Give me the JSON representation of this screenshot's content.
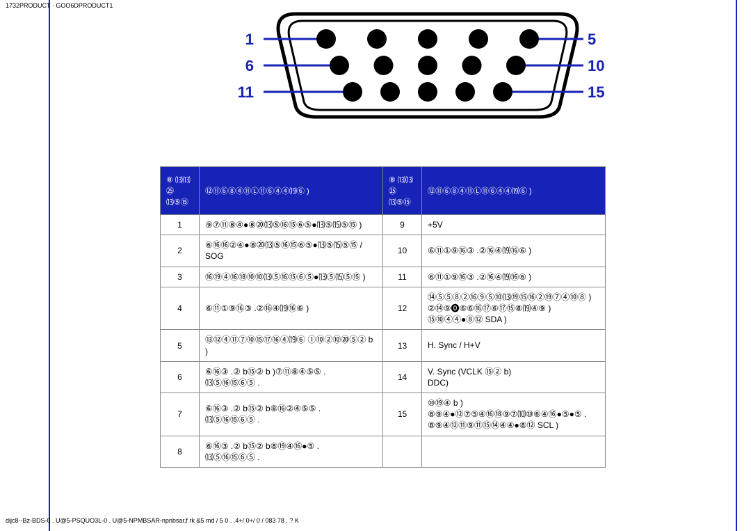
{
  "topbar": "1732PRODUCT · GOO6DPRODUCT1",
  "bottombar": "dijc8--Bz-BDS-0  . U@5-PSQUO3L-0  . U@5-NPMBSAR-npnbsar,f rk  &5 md / 5 0 . .4+/ 0+/ 0 / 083 78 . ? K",
  "connector": {
    "left_labels": [
      "1",
      "6",
      "11"
    ],
    "right_labels": [
      "5",
      "10",
      "15"
    ],
    "rows": [
      5,
      5,
      5
    ],
    "label_color": "#1722b6",
    "shell_stroke": "#000000",
    "pin_fill": "#000000"
  },
  "table": {
    "header_bg": "#1722b6",
    "header_fg": "#ffffff",
    "headers": {
      "pin_left": "⑧ ⒀⒀㉕⒀⑤⑮",
      "sig_left": "⑫⑪⑥⑧④⑪Ⓛ⑪⑥④④⒆⑥ )",
      "pin_right": "⑧ ⒀⒀㉕⒀⑤⑮",
      "sig_right": "⑫⑪⑥⑧④⑪Ⓛ⑪⑥④④⒆⑥ )"
    },
    "rows": [
      {
        "ln": "1",
        "ld": "⑨⑦⑪⑧④●⑧⑳⒀⑤⑯⑮⑥⑤●⒀⑤⒂⑤⑮ )",
        "rn": "9",
        "rd": "+5V"
      },
      {
        "ln": "2",
        "ld": "⑥⑯⑯②④●⑧⑳⒀⑤⑯⑮⑥⑤●⒀⑤⒂⑤⑮ /\nSOG",
        "rn": "10",
        "rd": "⑥⑪①⑨⑯③ .②⑯④⒆⑯⑥ )"
      },
      {
        "ln": "3",
        "ld": "⑯⑲④⑯⑱⑩⑩⒀⑤⑯⑮⑥⑤●⒀⑤⒂⑤⑮ )",
        "rn": "11",
        "rd": "⑥⑪①⑨⑯③ .②⑯④⒆⑯⑥ )"
      },
      {
        "ln": "4",
        "ld": "⑥⑪①⑨⑯③ .②⑯④⒆⑯⑥ )",
        "rn": "12",
        "rd": "⑭⑤⑤⑧②⑯⑨⑤⑩⒀⑲⑮⑯②⑲⑦④⑩⑧ )\n②⑭⑨⓿⑥⑥⑯⑰⑥⑰⑮⑧⒆④⑨ )\n⑮⑩④④●⑧⑫ SDA )"
      },
      {
        "ln": "5",
        "ld": "⑬⑫④⑪⑦⑩⑮⑰⑯④⒆⑥ ①⑩②⑩⑳⑤② b )",
        "rn": "13",
        "rd": "H. Sync / H+V"
      },
      {
        "ln": "6",
        "ld": "⑥⑯③ .② b⑮② b )⑦⑪⑧④⑤⑤ .\n⒀⑤⑯⑮⑥⑤ .",
        "rn": "14",
        "rd": "V. Sync (VCLK ⑮② b)\nDDC)"
      },
      {
        "ln": "7",
        "ld": "⑥⑯③ .② b⑮② b⑧⑯②④⑤⑤ .\n⒀⑤⑯⑮⑥⑤ .",
        "rn": "15",
        "rd": "⑩⑲④ b )\n⑧⑨④●⑫⑦⑤④⑯⑱⑨⑦⑽⑩⑥④⑯●⑤●⑤ .\n⑧⑨④⑫⑪⑨⑪⑮⑭④④●⑧⑫ SCL )"
      },
      {
        "ln": "8",
        "ld": "⑥⑯③ .② b⑮② b⑧⑲④⑯●⑤ .\n⒀⑤⑯⑮⑥⑤ .",
        "rn": "",
        "rd": ""
      }
    ]
  }
}
